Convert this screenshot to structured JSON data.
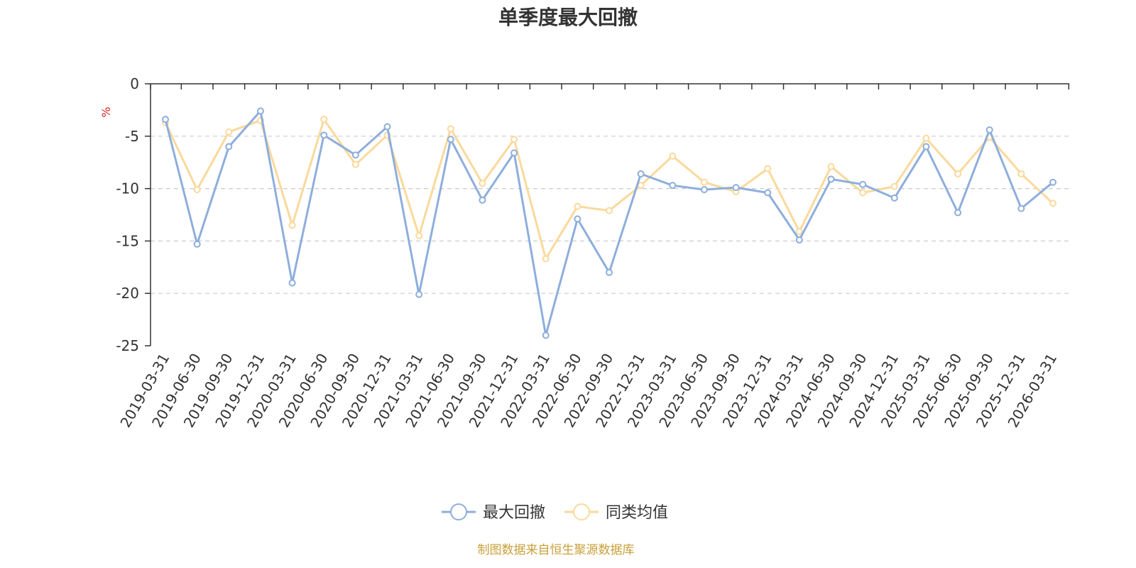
{
  "chart_data": {
    "type": "line",
    "title": "单季度最大回撤",
    "ylabel": "%",
    "xlabel": "",
    "ylim": [
      -25,
      0
    ],
    "yticks": [
      0,
      -5,
      -10,
      -15,
      -20,
      -25
    ],
    "grid": true,
    "legend": "bottom-center",
    "categories": [
      "2019-03-31",
      "2019-06-30",
      "2019-09-30",
      "2019-12-31",
      "2020-03-31",
      "2020-06-30",
      "2020-09-30",
      "2020-12-31",
      "2021-03-31",
      "2021-06-30",
      "2021-09-30",
      "2021-12-31",
      "2022-03-31",
      "2022-06-30",
      "2022-09-30",
      "2022-12-31",
      "2023-03-31",
      "2023-06-30",
      "2023-09-30",
      "2023-12-31",
      "2024-03-31",
      "2024-06-30",
      "2024-09-30",
      "2024-12-31",
      "2025-03-31",
      "2025-06-30",
      "2025-09-30",
      "2025-12-31",
      "2026-03-31"
    ],
    "series": [
      {
        "name": "最大回撤",
        "color": "#8eaedc",
        "values": [
          -3.4,
          -15.3,
          -6.0,
          -2.6,
          -19.0,
          -4.9,
          -6.8,
          -4.1,
          -20.1,
          -5.3,
          -11.1,
          -6.6,
          -24.0,
          -12.9,
          -18.0,
          -8.6,
          -9.7,
          -10.1,
          -9.9,
          -10.4,
          -14.9,
          -9.1,
          -9.6,
          -10.9,
          -6.0,
          -12.3,
          -4.4,
          -11.9,
          -9.4
        ]
      },
      {
        "name": "同类均值",
        "color": "#fad99c",
        "values": [
          -3.7,
          -10.1,
          -4.6,
          -3.5,
          -13.5,
          -3.4,
          -7.7,
          -4.9,
          -14.5,
          -4.3,
          -9.5,
          -5.3,
          -16.7,
          -11.7,
          -12.1,
          -9.7,
          -6.9,
          -9.4,
          -10.3,
          -8.1,
          -14.1,
          -7.9,
          -10.4,
          -9.8,
          -5.2,
          -8.6,
          -5.1,
          -8.6,
          -11.4
        ]
      }
    ]
  },
  "footer": {
    "source_text": "制图数据来自恒生聚源数据库"
  },
  "colors": {
    "axis": "#333333",
    "grid": "#cccccc",
    "unit": "#e02020",
    "source": "#c9a038"
  }
}
